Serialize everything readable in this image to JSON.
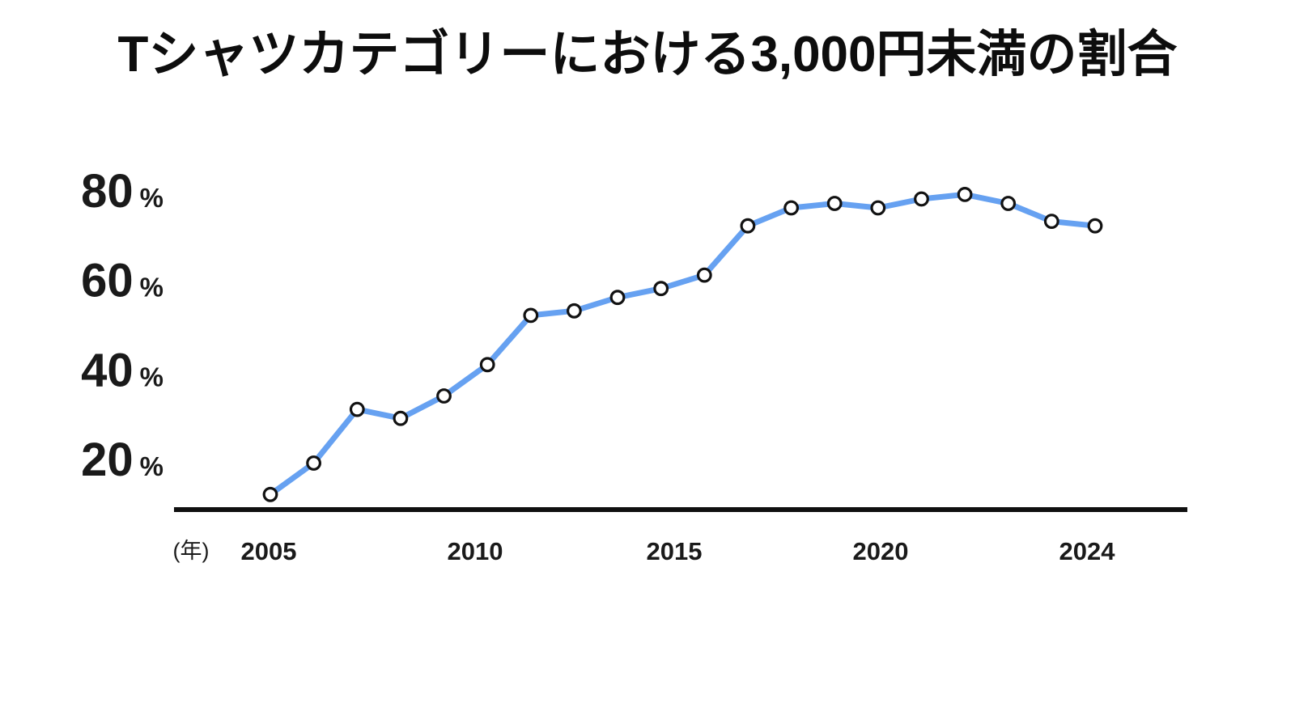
{
  "chart_data": {
    "type": "line",
    "title": "Tシャツカテゴリーにおける3,000円未満の割合",
    "x": [
      2005,
      2006,
      2007,
      2008,
      2009,
      2010,
      2011,
      2012,
      2013,
      2014,
      2015,
      2016,
      2017,
      2018,
      2019,
      2020,
      2021,
      2022,
      2023,
      2024
    ],
    "values": [
      12,
      19,
      31,
      29,
      34,
      41,
      52,
      53,
      56,
      58,
      61,
      72,
      76,
      77,
      76,
      78,
      79,
      77,
      73,
      72
    ],
    "unit": "%",
    "y_ticks": [
      80,
      60,
      40,
      20
    ],
    "y_tick_unit": "%",
    "x_tick_labels": [
      "2005",
      "2010",
      "2015",
      "2020",
      "2024"
    ],
    "x_axis_unit_label": "(年)",
    "ylim": [
      9,
      100
    ],
    "grid": false,
    "legend": false,
    "marker_style": "open-circle",
    "colors": {
      "line": "#66a1f1",
      "marker_fill": "#ffffff",
      "marker_stroke": "#121212",
      "axis": "#101010",
      "text": "#1a1a1a"
    }
  }
}
